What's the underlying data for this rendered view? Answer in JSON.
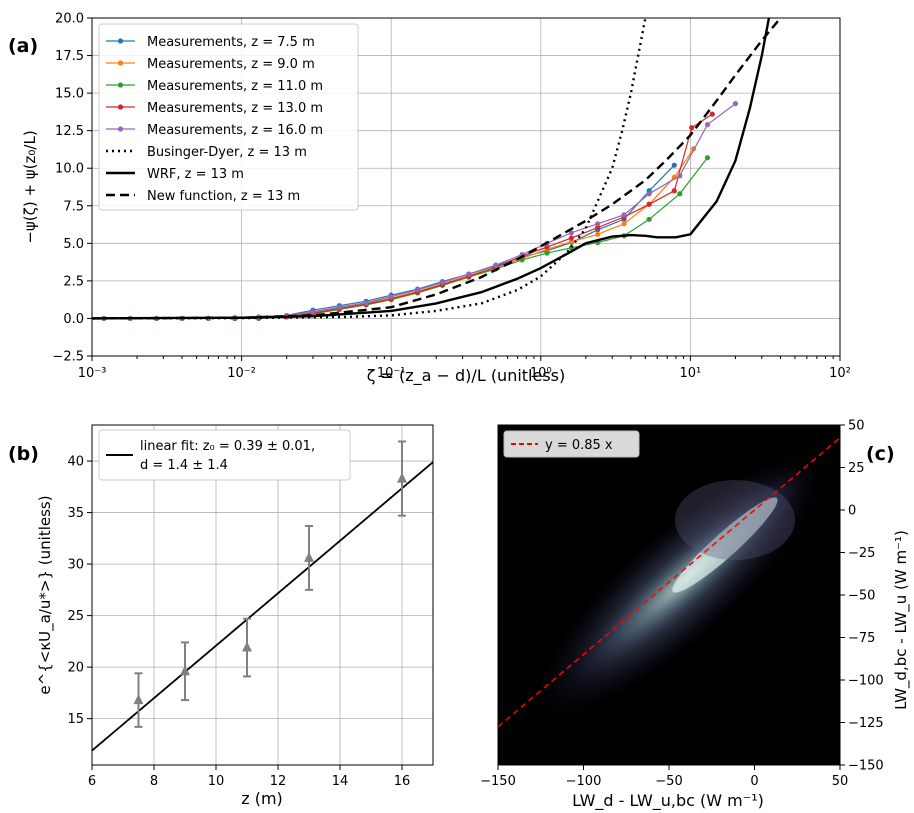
{
  "chart_data": [
    {
      "panel": "(a)",
      "type": "line",
      "xlabel": "ζ = (z_a − d)/L (unitless)",
      "ylabel": "−ψ(ζ) + ψ(z₀/L)",
      "xscale": "log",
      "xlim": [
        0.001,
        100
      ],
      "ylim": [
        -2.5,
        20
      ],
      "xticks": [
        "10⁻³",
        "10⁻²",
        "10⁻¹",
        "10⁰",
        "10¹",
        "10²"
      ],
      "yticks": [
        "−2.5",
        "0.0",
        "2.5",
        "5.0",
        "7.5",
        "10.0",
        "12.5",
        "15.0",
        "17.5",
        "20.0"
      ],
      "grid": true,
      "legend_position": "top-left",
      "series": [
        {
          "name": "Measurements, z = 7.5 m",
          "color": "#1f77b4",
          "style": "line-marker",
          "x": [
            0.0012,
            0.0018,
            0.0027,
            0.004,
            0.006,
            0.009,
            0.013,
            0.02,
            0.03,
            0.045,
            0.068,
            0.1,
            0.15,
            0.22,
            0.33,
            0.5,
            0.75,
            1.1,
            1.6,
            2.4,
            3.6,
            5.3,
            7.8
          ],
          "y": [
            0,
            0,
            0,
            0,
            0,
            0.05,
            0.1,
            0.2,
            0.55,
            0.85,
            1.15,
            1.55,
            1.95,
            2.45,
            2.95,
            3.5,
            4.1,
            4.5,
            5.05,
            5.9,
            6.6,
            8.5,
            10.2
          ]
        },
        {
          "name": "Measurements, z = 9.0 m",
          "color": "#ff7f0e",
          "style": "line-marker",
          "x": [
            0.0012,
            0.0018,
            0.0027,
            0.004,
            0.006,
            0.009,
            0.013,
            0.02,
            0.03,
            0.045,
            0.068,
            0.1,
            0.15,
            0.22,
            0.33,
            0.5,
            0.75,
            1.1,
            1.6,
            2.4,
            3.6,
            5.3,
            7.8,
            10.5
          ],
          "y": [
            0,
            0,
            0,
            0,
            0,
            0,
            0.05,
            0.15,
            0.4,
            0.7,
            1,
            1.35,
            1.8,
            2.3,
            2.85,
            3.4,
            4,
            4.6,
            5.1,
            5.6,
            6.3,
            7.6,
            9.4,
            11.3
          ]
        },
        {
          "name": "Measurements, z = 11.0 m",
          "color": "#2ca02c",
          "style": "line-marker",
          "x": [
            0.0012,
            0.0018,
            0.0027,
            0.004,
            0.006,
            0.009,
            0.013,
            0.02,
            0.03,
            0.045,
            0.068,
            0.1,
            0.15,
            0.22,
            0.33,
            0.5,
            0.75,
            1.1,
            1.6,
            2.4,
            3.6,
            5.3,
            8.5,
            13
          ],
          "y": [
            0,
            0,
            0,
            0,
            0,
            0,
            0,
            0.1,
            0.3,
            0.6,
            0.9,
            1.25,
            1.7,
            2.2,
            2.75,
            3.3,
            3.9,
            4.35,
            4.7,
            5.05,
            5.5,
            6.6,
            8.3,
            10.7
          ]
        },
        {
          "name": "Measurements, z = 13.0 m",
          "color": "#d62728",
          "style": "line-marker",
          "x": [
            0.0012,
            0.0018,
            0.0027,
            0.004,
            0.006,
            0.009,
            0.013,
            0.02,
            0.03,
            0.045,
            0.068,
            0.1,
            0.15,
            0.22,
            0.33,
            0.5,
            0.75,
            1.1,
            1.6,
            2.4,
            3.6,
            5.3,
            7.8,
            10.2,
            14
          ],
          "y": [
            0,
            0,
            0,
            0,
            0,
            0,
            0.05,
            0.1,
            0.35,
            0.65,
            0.95,
            1.3,
            1.75,
            2.25,
            2.8,
            3.4,
            4.15,
            4.75,
            5.35,
            6.05,
            6.75,
            7.6,
            8.5,
            12.7,
            13.6
          ]
        },
        {
          "name": "Measurements, z = 16.0 m",
          "color": "#9467bd",
          "style": "line-marker",
          "x": [
            0.0012,
            0.0018,
            0.0027,
            0.004,
            0.006,
            0.009,
            0.013,
            0.02,
            0.03,
            0.045,
            0.068,
            0.1,
            0.15,
            0.22,
            0.33,
            0.5,
            0.75,
            1.1,
            1.6,
            2.4,
            3.6,
            5.3,
            8.5,
            13,
            20
          ],
          "y": [
            0,
            0,
            0,
            0,
            0,
            0.05,
            0.1,
            0.2,
            0.45,
            0.75,
            1.05,
            1.45,
            1.9,
            2.4,
            2.95,
            3.55,
            4.25,
            5,
            5.7,
            6.3,
            6.9,
            8.3,
            9.5,
            12.9,
            14.3
          ]
        },
        {
          "name": "Businger-Dyer, z = 13 m",
          "color": "#000000",
          "style": "dotted",
          "x": [
            0.001,
            0.01,
            0.05,
            0.1,
            0.2,
            0.4,
            0.7,
            1,
            1.5,
            2,
            3,
            3.5,
            4,
            5,
            6
          ],
          "y": [
            0,
            0.02,
            0.1,
            0.2,
            0.5,
            1,
            1.9,
            2.8,
            4.4,
            6,
            10,
            12.5,
            15,
            20,
            26
          ]
        },
        {
          "name": "WRF, z = 13 m",
          "color": "#000000",
          "style": "solid",
          "x": [
            0.001,
            0.01,
            0.03,
            0.1,
            0.2,
            0.4,
            0.7,
            1,
            1.5,
            2,
            3,
            4,
            5,
            6,
            8,
            10,
            15,
            20,
            25,
            30,
            35
          ],
          "y": [
            0,
            0.05,
            0.15,
            0.5,
            1,
            1.75,
            2.65,
            3.35,
            4.3,
            5,
            5.45,
            5.55,
            5.5,
            5.4,
            5.4,
            5.6,
            7.8,
            10.5,
            14,
            17.5,
            21
          ]
        },
        {
          "name": "New function, z = 13 m",
          "color": "#000000",
          "style": "dashed",
          "x": [
            0.001,
            0.01,
            0.03,
            0.1,
            0.2,
            0.4,
            0.7,
            1,
            2,
            3,
            5,
            7,
            10,
            15,
            20,
            30,
            40,
            50
          ],
          "y": [
            0,
            0.05,
            0.2,
            0.75,
            1.6,
            2.75,
            3.95,
            4.8,
            6.5,
            7.6,
            9.2,
            10.6,
            12.2,
            14.5,
            16.2,
            18.5,
            20,
            21
          ]
        }
      ],
      "panel_label": "(a)"
    },
    {
      "panel": "(b)",
      "type": "scatter",
      "xlabel": "z (m)",
      "ylabel": "e^{<κU_a/u*>} (unitless)",
      "xlim": [
        6,
        17
      ],
      "ylim": [
        10.5,
        43.5
      ],
      "xticks": [
        "6",
        "8",
        "10",
        "12",
        "14",
        "16"
      ],
      "yticks": [
        "15",
        "20",
        "25",
        "30",
        "35",
        "40"
      ],
      "grid": true,
      "legend_position": "top-left",
      "legend": [
        "linear fit: z₀ = 0.39 ± 0.01,",
        "d = 1.4 ± 1.4"
      ],
      "points": {
        "color": "#808080",
        "x": [
          7.5,
          9.0,
          11.0,
          13.0,
          16.0
        ],
        "y": [
          16.8,
          19.6,
          21.9,
          30.6,
          38.3
        ],
        "err": [
          2.6,
          2.8,
          2.8,
          3.1,
          3.6
        ]
      },
      "fit_line": {
        "color": "#000000",
        "x": [
          6,
          17
        ],
        "y": [
          11.9,
          39.9
        ]
      },
      "panel_label": "(b)"
    },
    {
      "panel": "(c)",
      "type": "heatmap",
      "xlabel": "LW_d - LW_u,bc (W m⁻¹)",
      "ylabel": "LW_d,bc - LW_u (W m⁻¹)",
      "xlim": [
        -150,
        50
      ],
      "ylim": [
        -150,
        50
      ],
      "xticks": [
        "−150",
        "−100",
        "−50",
        "0",
        "50"
      ],
      "yticks": [
        "50",
        "25",
        "0",
        "−25",
        "−50",
        "−75",
        "−100",
        "−125",
        "−150"
      ],
      "yaxis_side": "right",
      "background_color": "#000000",
      "legend_position": "top-left",
      "reference_line": {
        "label": "y = 0.85 x",
        "color": "#ff0000",
        "slope": 0.85
      },
      "panel_label": "(c)"
    }
  ]
}
